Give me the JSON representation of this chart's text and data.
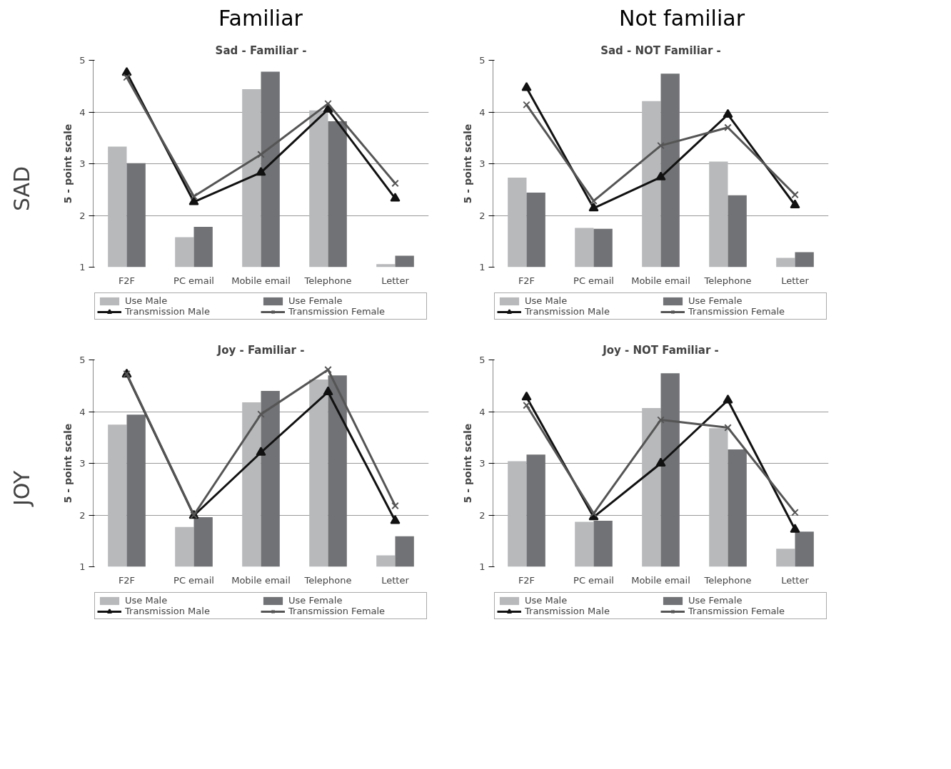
{
  "chart_data": [
    {
      "type": "bar",
      "title": "Sad - Familiar -",
      "ylabel": "5 - point scale",
      "categories": [
        "F2F",
        "PC email",
        "Mobile email",
        "Telephone",
        "Letter"
      ],
      "ylim": [
        1,
        5
      ],
      "yticks": [
        1,
        2,
        3,
        4,
        5
      ],
      "grid": "y",
      "legend": "bottom",
      "annotations": [
        "Familiar",
        "SAD"
      ],
      "series": [
        {
          "name": "Use Male",
          "color": "#b8b9bb",
          "values": [
            3.33,
            1.58,
            4.44,
            4.03,
            1.06
          ]
        },
        {
          "name": "Use Female",
          "color": "#717275",
          "values": [
            3.01,
            1.78,
            4.78,
            3.82,
            1.22
          ]
        },
        {
          "name": "Transmission Male",
          "type": "line",
          "marker": "triangle",
          "color": "#111111",
          "values": [
            4.76,
            2.26,
            2.83,
            4.05,
            2.33
          ]
        },
        {
          "name": "Transmission Female",
          "type": "line",
          "marker": "cross",
          "color": "#555555",
          "values": [
            4.67,
            2.37,
            3.18,
            4.16,
            2.62
          ]
        }
      ]
    },
    {
      "type": "bar",
      "title": "Sad - NOT Familiar -",
      "ylabel": "5 - point scale",
      "categories": [
        "F2F",
        "PC email",
        "Mobile email",
        "Telephone",
        "Letter"
      ],
      "ylim": [
        1,
        5
      ],
      "yticks": [
        1,
        2,
        3,
        4,
        5
      ],
      "grid": "y",
      "legend": "bottom",
      "annotations": [
        "Not familiar"
      ],
      "series": [
        {
          "name": "Use Male",
          "color": "#b8b9bb",
          "values": [
            2.73,
            1.76,
            4.21,
            3.04,
            1.18
          ]
        },
        {
          "name": "Use Female",
          "color": "#717275",
          "values": [
            2.44,
            1.74,
            4.74,
            2.39,
            1.29
          ]
        },
        {
          "name": "Transmission Male",
          "type": "line",
          "marker": "triangle",
          "color": "#111111",
          "values": [
            4.47,
            2.14,
            2.74,
            3.95,
            2.2
          ]
        },
        {
          "name": "Transmission Female",
          "type": "line",
          "marker": "cross",
          "color": "#555555",
          "values": [
            4.14,
            2.28,
            3.35,
            3.7,
            2.4
          ]
        }
      ]
    },
    {
      "type": "bar",
      "title": "Joy - Familiar -",
      "ylabel": "5 - point scale",
      "categories": [
        "F2F",
        "PC email",
        "Mobile email",
        "Telephone",
        "Letter"
      ],
      "ylim": [
        1,
        5
      ],
      "yticks": [
        1,
        2,
        3,
        4,
        5
      ],
      "grid": "y",
      "legend": "bottom",
      "annotations": [
        "JOY"
      ],
      "series": [
        {
          "name": "Use Male",
          "color": "#b8b9bb",
          "values": [
            3.75,
            1.77,
            4.18,
            4.62,
            1.22
          ]
        },
        {
          "name": "Use Female",
          "color": "#717275",
          "values": [
            3.94,
            1.96,
            4.4,
            4.7,
            1.59
          ]
        },
        {
          "name": "Transmission Male",
          "type": "line",
          "marker": "triangle",
          "color": "#111111",
          "values": [
            4.72,
            1.99,
            3.21,
            4.38,
            1.89
          ]
        },
        {
          "name": "Transmission Female",
          "type": "line",
          "marker": "cross",
          "color": "#555555",
          "values": [
            4.73,
            2.0,
            3.95,
            4.81,
            2.18
          ]
        }
      ]
    },
    {
      "type": "bar",
      "title": "Joy - NOT Familiar -",
      "ylabel": "5 - point scale",
      "categories": [
        "F2F",
        "PC email",
        "Mobile email",
        "Telephone",
        "Letter"
      ],
      "ylim": [
        1,
        5
      ],
      "yticks": [
        1,
        2,
        3,
        4,
        5
      ],
      "grid": "y",
      "legend": "bottom",
      "series": [
        {
          "name": "Use Male",
          "color": "#b8b9bb",
          "values": [
            3.04,
            1.87,
            4.07,
            3.68,
            1.35
          ]
        },
        {
          "name": "Use Female",
          "color": "#717275",
          "values": [
            3.17,
            1.89,
            4.74,
            3.27,
            1.68
          ]
        },
        {
          "name": "Transmission Male",
          "type": "line",
          "marker": "triangle",
          "color": "#111111",
          "values": [
            4.28,
            1.96,
            3.0,
            4.22,
            1.72
          ]
        },
        {
          "name": "Transmission Female",
          "type": "line",
          "marker": "cross",
          "color": "#555555",
          "values": [
            4.12,
            2.03,
            3.84,
            3.69,
            2.05
          ]
        }
      ]
    }
  ]
}
